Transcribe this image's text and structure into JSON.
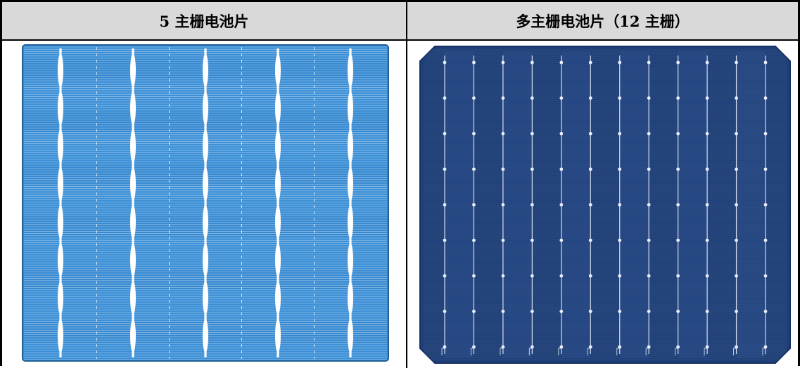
{
  "table": {
    "headers": [
      {
        "label": "5 主栅电池片"
      },
      {
        "label": "多主栅电池片（12 主栅）"
      }
    ]
  },
  "left_cell": {
    "image": {
      "subject": "five-busbar-solar-cell",
      "busbar_count": 5,
      "colors": {
        "cell": "#3b8fd6",
        "cell_dark": "#2f7ec8",
        "grid": "#ffffff",
        "border": "#1f5f99"
      }
    }
  },
  "right_cell": {
    "image": {
      "subject": "multi-busbar-solar-cell",
      "busbar_count": 12,
      "colors": {
        "cell": "#1f3f78",
        "cell_light": "#2a4f8f",
        "grid": "#e8eefa",
        "border": "#163063"
      }
    }
  }
}
